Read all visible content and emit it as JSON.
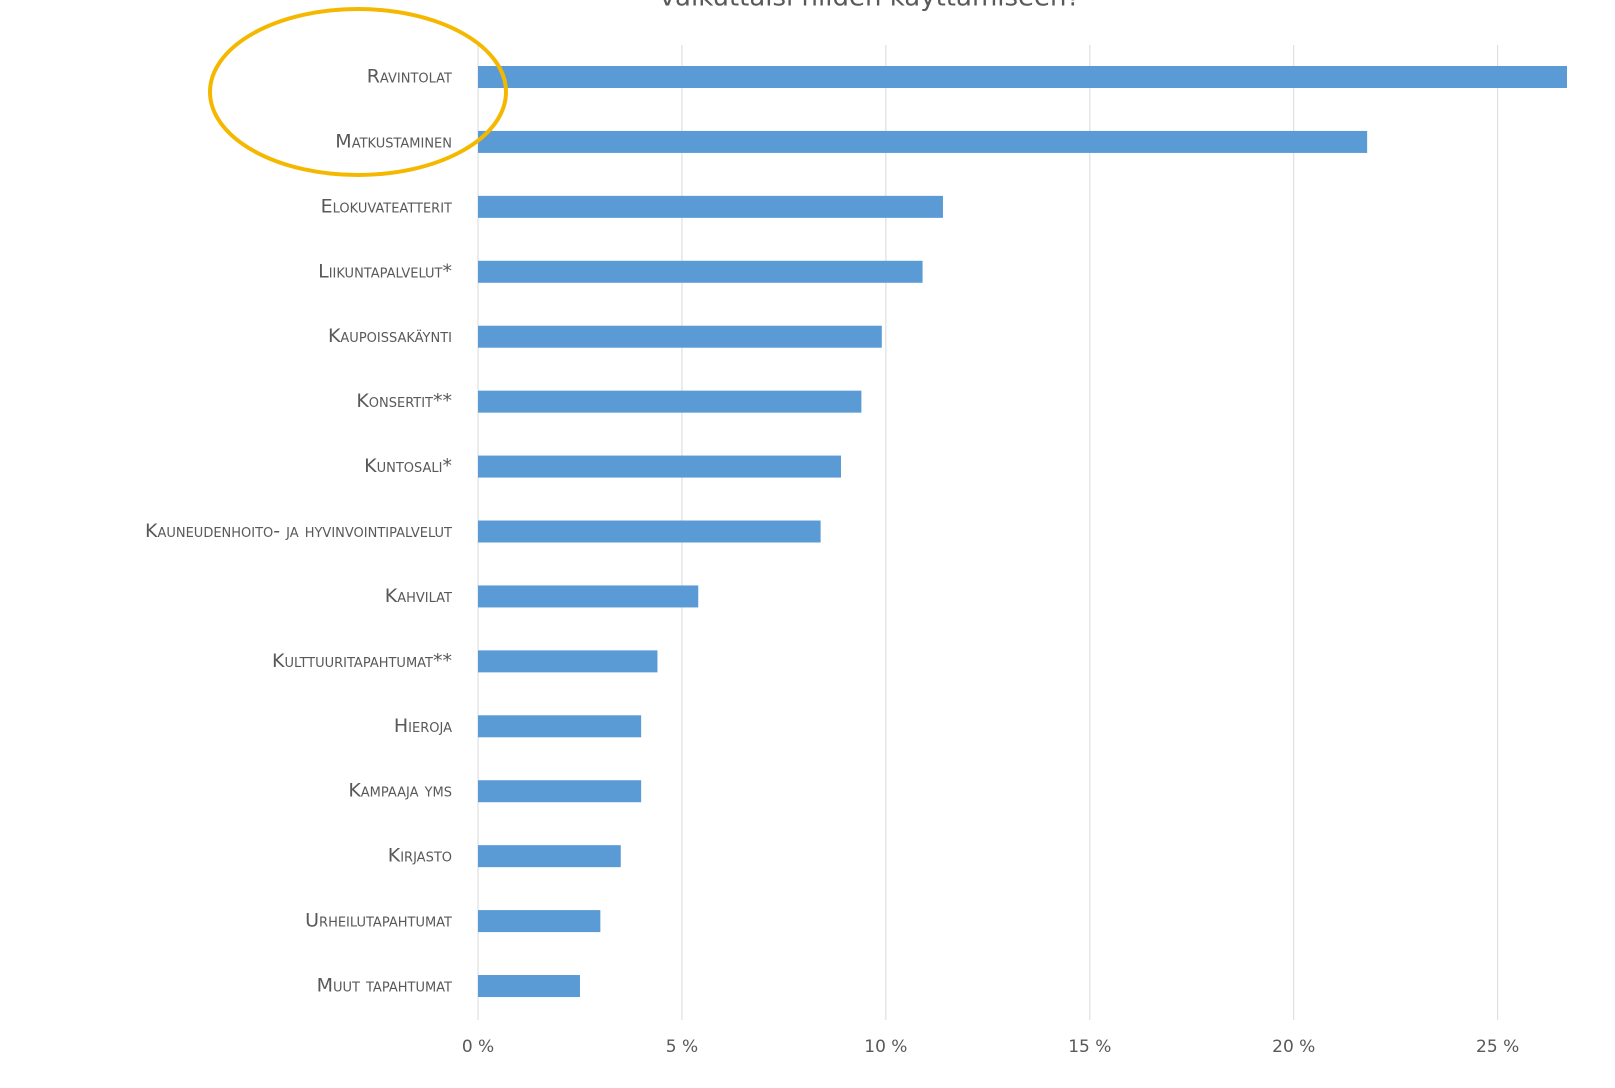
{
  "chart_data": {
    "type": "hbar",
    "title": "vaikuttaisi niiden käyttämiseen?",
    "categories": [
      "Ravintolat",
      "Matkustaminen",
      "Elokuvateatterit",
      "Liikuntapalvelut*",
      "Kaupoissakäynti",
      "Konsertit**",
      "Kuntosali*",
      "Kauneudenhoito- ja hyvinvointipalvelut",
      "Kahvilat",
      "Kulttuuritapahtumat**",
      "Hieroja",
      "Kampaaja yms",
      "Kirjasto",
      "Urheilutapahtumat",
      "Muut tapahtumat"
    ],
    "values": [
      26.7,
      21.8,
      11.4,
      10.9,
      9.9,
      9.4,
      8.9,
      8.4,
      5.4,
      4.4,
      4.0,
      4.0,
      3.5,
      3.0,
      2.5
    ],
    "color": "#5b9bd5",
    "xlim": [
      0,
      26.7
    ],
    "xticks": [
      {
        "value": 0,
        "label": "0 %"
      },
      {
        "value": 5,
        "label": "5 %"
      },
      {
        "value": 10,
        "label": "10 %"
      },
      {
        "value": 15,
        "label": "15 %"
      },
      {
        "value": 20,
        "label": "20 %"
      },
      {
        "value": 25,
        "label": "25 %"
      }
    ],
    "grid": true
  }
}
